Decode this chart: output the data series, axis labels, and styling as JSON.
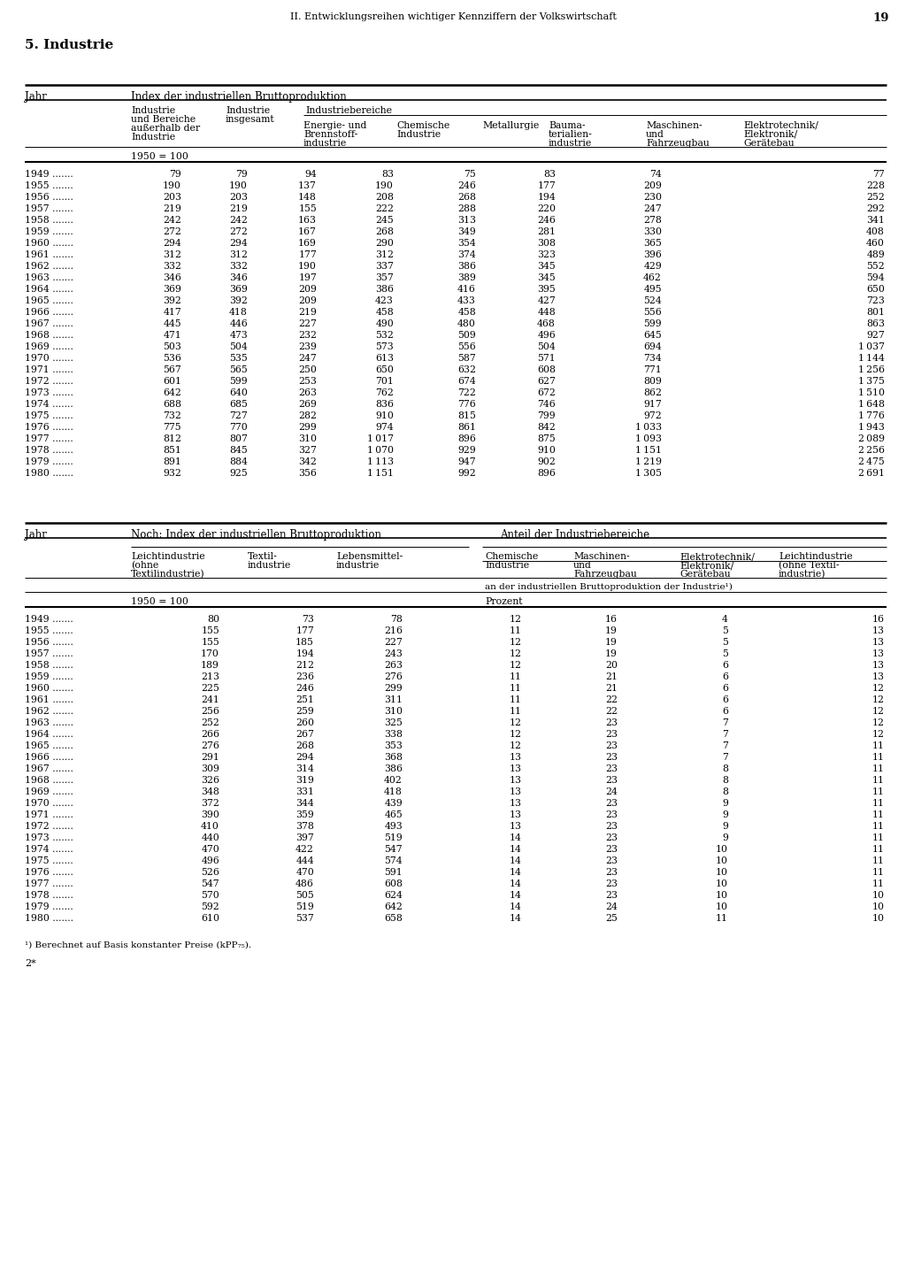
{
  "page_header": "II. Entwicklungsreihen wichtiger Kennziffern der Volkswirtschaft",
  "page_number": "19",
  "section_title": "5. Industrie",
  "footnote": "¹) Berechnet auf Basis konstanter Preise (kPP₇₅).",
  "footer": "2*",
  "table1": {
    "title": "Index der industriellen Bruttoproduktion",
    "base": "1950 = 100",
    "years": [
      1949,
      1955,
      1956,
      1957,
      1958,
      1959,
      1960,
      1961,
      1962,
      1963,
      1964,
      1965,
      1966,
      1967,
      1968,
      1969,
      1970,
      1971,
      1972,
      1973,
      1974,
      1975,
      1976,
      1977,
      1978,
      1979,
      1980
    ],
    "col1": [
      79,
      190,
      203,
      219,
      242,
      272,
      294,
      312,
      332,
      346,
      369,
      392,
      417,
      445,
      471,
      503,
      536,
      567,
      601,
      642,
      688,
      732,
      775,
      812,
      851,
      891,
      932
    ],
    "col2": [
      79,
      190,
      203,
      219,
      242,
      272,
      294,
      312,
      332,
      346,
      369,
      392,
      418,
      446,
      473,
      504,
      535,
      565,
      599,
      640,
      685,
      727,
      770,
      807,
      845,
      884,
      925
    ],
    "col3": [
      94,
      137,
      148,
      155,
      163,
      167,
      169,
      177,
      190,
      197,
      209,
      209,
      219,
      227,
      232,
      239,
      247,
      250,
      253,
      263,
      269,
      282,
      299,
      310,
      327,
      342,
      356
    ],
    "col4": [
      83,
      190,
      208,
      222,
      245,
      268,
      290,
      312,
      337,
      357,
      386,
      423,
      458,
      490,
      532,
      573,
      613,
      650,
      701,
      762,
      836,
      910,
      974,
      1017,
      1070,
      1113,
      1151
    ],
    "col5": [
      75,
      246,
      268,
      288,
      313,
      349,
      354,
      374,
      386,
      389,
      416,
      433,
      458,
      480,
      509,
      556,
      587,
      632,
      674,
      722,
      776,
      815,
      861,
      896,
      929,
      947,
      992
    ],
    "col6": [
      83,
      177,
      194,
      220,
      246,
      281,
      308,
      323,
      345,
      345,
      395,
      427,
      448,
      468,
      496,
      504,
      571,
      608,
      627,
      672,
      746,
      799,
      842,
      875,
      910,
      902,
      896
    ],
    "col7": [
      74,
      209,
      230,
      247,
      278,
      330,
      365,
      396,
      429,
      462,
      495,
      524,
      556,
      599,
      645,
      694,
      734,
      771,
      809,
      862,
      917,
      972,
      1033,
      1093,
      1151,
      1219,
      1305
    ],
    "col8": [
      77,
      228,
      252,
      292,
      341,
      408,
      460,
      489,
      552,
      594,
      650,
      723,
      801,
      863,
      927,
      1037,
      1144,
      1256,
      1375,
      1510,
      1648,
      1776,
      1943,
      2089,
      2256,
      2475,
      2691
    ]
  },
  "table2": {
    "title1": "Noch: Index der industriellen Bruttoproduktion",
    "title2": "Anteil der Industriebereiche",
    "base1": "1950 = 100",
    "base2": "an der industriellen Bruttoproduktion der Industrie¹)",
    "base3": "Prozent",
    "years": [
      1949,
      1955,
      1956,
      1957,
      1958,
      1959,
      1960,
      1961,
      1962,
      1963,
      1964,
      1965,
      1966,
      1967,
      1968,
      1969,
      1970,
      1971,
      1972,
      1973,
      1974,
      1975,
      1976,
      1977,
      1978,
      1979,
      1980
    ],
    "col1": [
      80,
      155,
      155,
      170,
      189,
      213,
      225,
      241,
      256,
      252,
      266,
      276,
      291,
      309,
      326,
      348,
      372,
      390,
      410,
      440,
      470,
      496,
      526,
      547,
      570,
      592,
      610
    ],
    "col2": [
      73,
      177,
      185,
      194,
      212,
      236,
      246,
      251,
      259,
      260,
      267,
      268,
      294,
      314,
      319,
      331,
      344,
      359,
      378,
      397,
      422,
      444,
      470,
      486,
      505,
      519,
      537
    ],
    "col3": [
      78,
      216,
      227,
      243,
      263,
      276,
      299,
      311,
      310,
      325,
      338,
      353,
      368,
      386,
      402,
      418,
      439,
      465,
      493,
      519,
      547,
      574,
      591,
      608,
      624,
      642,
      658
    ],
    "col4": [
      12,
      11,
      12,
      12,
      12,
      11,
      11,
      11,
      11,
      12,
      12,
      12,
      13,
      13,
      13,
      13,
      13,
      13,
      13,
      14,
      14,
      14,
      14,
      14,
      14,
      14,
      14
    ],
    "col5": [
      16,
      19,
      19,
      19,
      20,
      21,
      21,
      22,
      22,
      23,
      23,
      23,
      23,
      23,
      23,
      24,
      23,
      23,
      23,
      23,
      23,
      23,
      23,
      23,
      23,
      24,
      25
    ],
    "col6": [
      4,
      5,
      5,
      5,
      6,
      6,
      6,
      6,
      6,
      7,
      7,
      7,
      7,
      8,
      8,
      8,
      9,
      9,
      9,
      9,
      10,
      10,
      10,
      10,
      10,
      10,
      11
    ],
    "col7": [
      16,
      13,
      13,
      13,
      13,
      13,
      12,
      12,
      12,
      12,
      12,
      11,
      11,
      11,
      11,
      11,
      11,
      11,
      11,
      11,
      11,
      11,
      11,
      11,
      10,
      10,
      10
    ]
  }
}
